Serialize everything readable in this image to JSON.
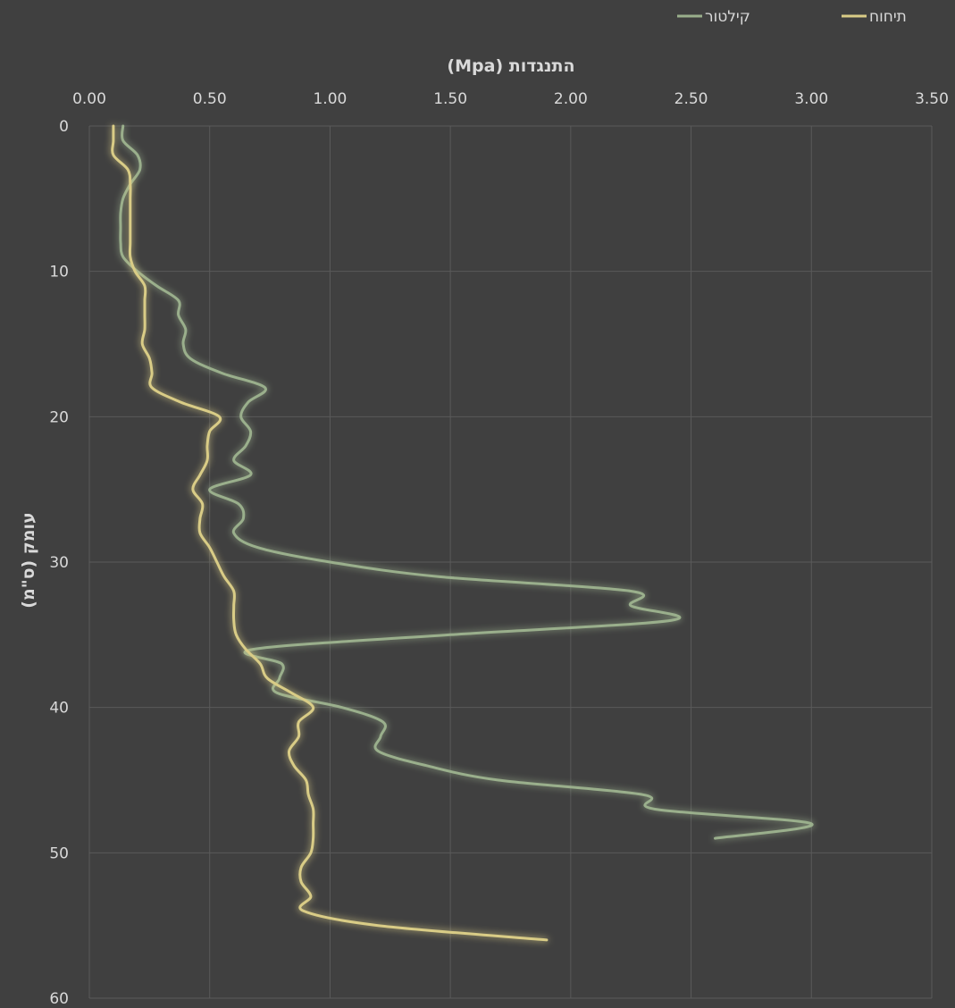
{
  "chart_data": {
    "type": "line",
    "xlabel": "התנגדות (Mpa)",
    "ylabel": "עומק (ס\"מ)",
    "xlim": [
      0,
      3.5
    ],
    "ylim": [
      0,
      60
    ],
    "x_axis_position": "top",
    "y_axis_inverted": true,
    "x_ticks": [
      "0.00",
      "0.50",
      "1.00",
      "1.50",
      "2.00",
      "2.50",
      "3.00",
      "3.50"
    ],
    "y_ticks": [
      "0",
      "10",
      "20",
      "30",
      "40",
      "50",
      "60"
    ],
    "grid": true,
    "legend_position": "top-right",
    "series": [
      {
        "name": "קילטור",
        "color": "#9aaf8c",
        "points": [
          [
            0.14,
            0
          ],
          [
            0.14,
            1
          ],
          [
            0.2,
            2
          ],
          [
            0.21,
            3
          ],
          [
            0.17,
            4
          ],
          [
            0.14,
            5
          ],
          [
            0.13,
            6
          ],
          [
            0.13,
            7
          ],
          [
            0.13,
            8
          ],
          [
            0.14,
            9
          ],
          [
            0.2,
            10
          ],
          [
            0.28,
            11
          ],
          [
            0.37,
            12
          ],
          [
            0.37,
            13
          ],
          [
            0.4,
            14
          ],
          [
            0.39,
            15
          ],
          [
            0.42,
            16
          ],
          [
            0.55,
            17
          ],
          [
            0.73,
            18
          ],
          [
            0.66,
            19
          ],
          [
            0.63,
            20
          ],
          [
            0.67,
            21
          ],
          [
            0.65,
            22
          ],
          [
            0.6,
            23
          ],
          [
            0.67,
            24
          ],
          [
            0.5,
            25
          ],
          [
            0.62,
            26
          ],
          [
            0.64,
            27
          ],
          [
            0.6,
            28
          ],
          [
            0.7,
            29
          ],
          [
            1.0,
            30
          ],
          [
            1.45,
            31
          ],
          [
            2.25,
            32
          ],
          [
            2.25,
            33
          ],
          [
            2.42,
            34
          ],
          [
            1.5,
            35
          ],
          [
            0.68,
            36
          ],
          [
            0.8,
            37
          ],
          [
            0.79,
            38
          ],
          [
            0.78,
            39
          ],
          [
            1.05,
            40
          ],
          [
            1.22,
            41
          ],
          [
            1.21,
            42
          ],
          [
            1.2,
            43
          ],
          [
            1.4,
            44
          ],
          [
            1.7,
            45
          ],
          [
            2.3,
            46
          ],
          [
            2.35,
            47
          ],
          [
            3.0,
            48
          ],
          [
            2.6,
            49
          ]
        ]
      },
      {
        "name": "תיחוח",
        "color": "#d9cc86",
        "points": [
          [
            0.1,
            0
          ],
          [
            0.1,
            1
          ],
          [
            0.1,
            2
          ],
          [
            0.16,
            3
          ],
          [
            0.17,
            4
          ],
          [
            0.17,
            5
          ],
          [
            0.17,
            6
          ],
          [
            0.17,
            7
          ],
          [
            0.17,
            8
          ],
          [
            0.17,
            9
          ],
          [
            0.19,
            10
          ],
          [
            0.23,
            11
          ],
          [
            0.23,
            12
          ],
          [
            0.23,
            13
          ],
          [
            0.23,
            14
          ],
          [
            0.22,
            15
          ],
          [
            0.25,
            16
          ],
          [
            0.26,
            17
          ],
          [
            0.26,
            18
          ],
          [
            0.38,
            19
          ],
          [
            0.54,
            20
          ],
          [
            0.5,
            21
          ],
          [
            0.49,
            22
          ],
          [
            0.49,
            23
          ],
          [
            0.46,
            24
          ],
          [
            0.43,
            25
          ],
          [
            0.47,
            26
          ],
          [
            0.46,
            27
          ],
          [
            0.46,
            28
          ],
          [
            0.5,
            29
          ],
          [
            0.53,
            30
          ],
          [
            0.56,
            31
          ],
          [
            0.6,
            32
          ],
          [
            0.6,
            33
          ],
          [
            0.6,
            34
          ],
          [
            0.61,
            35
          ],
          [
            0.65,
            36
          ],
          [
            0.71,
            37
          ],
          [
            0.74,
            38
          ],
          [
            0.84,
            39
          ],
          [
            0.93,
            40
          ],
          [
            0.87,
            41
          ],
          [
            0.87,
            42
          ],
          [
            0.83,
            43
          ],
          [
            0.85,
            44
          ],
          [
            0.9,
            45
          ],
          [
            0.91,
            46
          ],
          [
            0.93,
            47
          ],
          [
            0.93,
            48
          ],
          [
            0.93,
            49
          ],
          [
            0.92,
            50
          ],
          [
            0.88,
            51
          ],
          [
            0.88,
            52
          ],
          [
            0.92,
            53
          ],
          [
            0.89,
            54
          ],
          [
            1.2,
            55
          ],
          [
            1.9,
            56
          ]
        ]
      }
    ]
  }
}
